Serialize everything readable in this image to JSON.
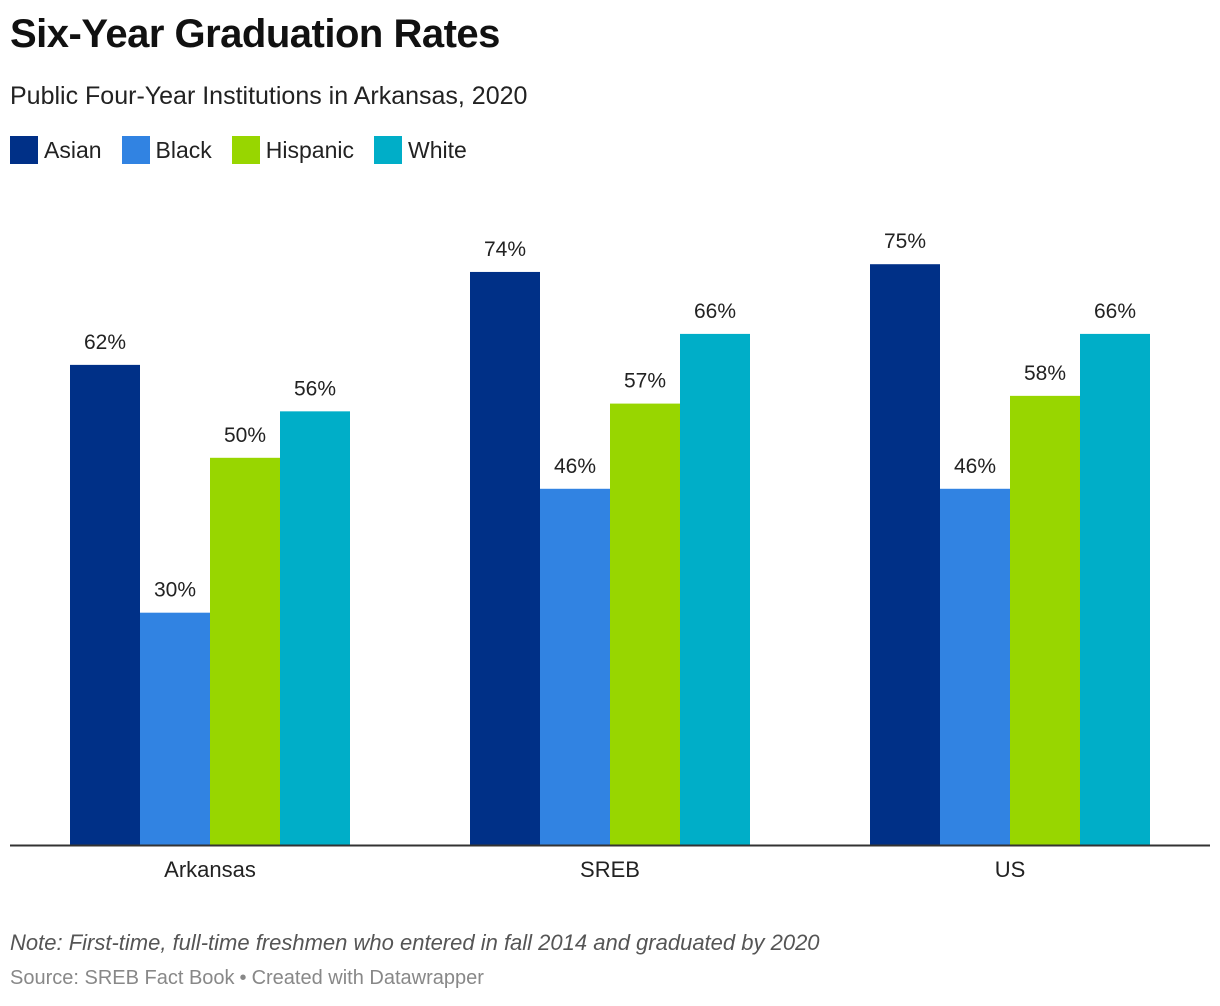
{
  "header": {
    "title": "Six-Year Graduation Rates",
    "subtitle": "Public Four-Year Institutions in Arkansas, 2020"
  },
  "colors": {
    "Asian": "#003087",
    "Black": "#3183e2",
    "Hispanic": "#98d600",
    "White": "#00aec8"
  },
  "chart_data": {
    "type": "bar",
    "categories": [
      "Arkansas",
      "SREB",
      "US"
    ],
    "series": [
      {
        "name": "Asian",
        "values": [
          62,
          74,
          75
        ]
      },
      {
        "name": "Black",
        "values": [
          30,
          46,
          46
        ]
      },
      {
        "name": "Hispanic",
        "values": [
          50,
          57,
          58
        ]
      },
      {
        "name": "White",
        "values": [
          56,
          66,
          66
        ]
      }
    ],
    "value_suffix": "%",
    "ylim": [
      0,
      82
    ],
    "grid": false,
    "legend": "top-left"
  },
  "footer": {
    "note": "Note: First-time, full-time freshmen who entered in fall 2014 and graduated by 2020",
    "source": "Source: SREB Fact Book",
    "separator": "•",
    "credit": "Created with Datawrapper"
  }
}
